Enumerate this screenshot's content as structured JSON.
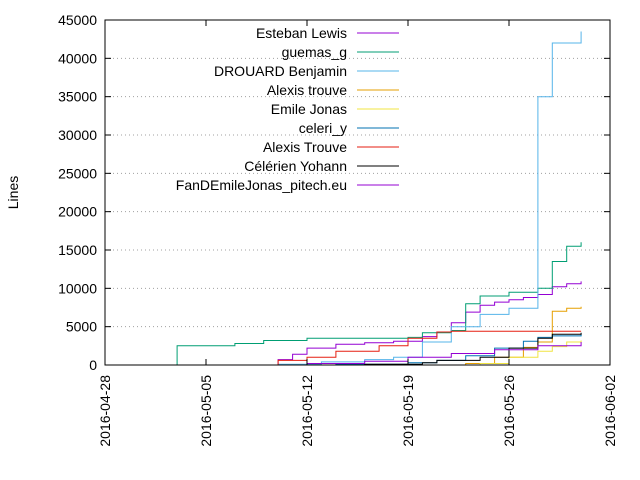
{
  "chart_data": {
    "type": "line",
    "title": "",
    "xlabel": "",
    "ylabel": "Lines",
    "x_axis_type": "date",
    "xlim": [
      "2016-04-28",
      "2016-06-02"
    ],
    "ylim": [
      0,
      45000
    ],
    "x_ticks": [
      "2016-04-28",
      "2016-05-05",
      "2016-05-12",
      "2016-05-19",
      "2016-05-26",
      "2016-06-02"
    ],
    "y_ticks": [
      0,
      5000,
      10000,
      15000,
      20000,
      25000,
      30000,
      35000,
      40000,
      45000
    ],
    "grid": "horizontal dotted",
    "legend_position": "top-right",
    "series": [
      {
        "name": "Esteban Lewis",
        "color": "#9400d3",
        "points": [
          [
            "2016-05-10",
            0
          ],
          [
            "2016-05-10",
            700
          ],
          [
            "2016-05-11",
            1400
          ],
          [
            "2016-05-12",
            2200
          ],
          [
            "2016-05-14",
            2700
          ],
          [
            "2016-05-16",
            2900
          ],
          [
            "2016-05-18",
            3100
          ],
          [
            "2016-05-20",
            3700
          ],
          [
            "2016-05-21",
            4300
          ],
          [
            "2016-05-22",
            5500
          ],
          [
            "2016-05-23",
            6900
          ],
          [
            "2016-05-24",
            7800
          ],
          [
            "2016-05-25",
            8200
          ],
          [
            "2016-05-26",
            8500
          ],
          [
            "2016-05-27",
            8800
          ],
          [
            "2016-05-28",
            9200
          ],
          [
            "2016-05-29",
            10200
          ],
          [
            "2016-05-30",
            10600
          ],
          [
            "2016-05-31",
            10900
          ]
        ]
      },
      {
        "name": "guemas_g",
        "color": "#009e73",
        "points": [
          [
            "2016-05-03",
            0
          ],
          [
            "2016-05-03",
            2500
          ],
          [
            "2016-05-07",
            2800
          ],
          [
            "2016-05-09",
            3200
          ],
          [
            "2016-05-12",
            3500
          ],
          [
            "2016-05-19",
            3600
          ],
          [
            "2016-05-20",
            4200
          ],
          [
            "2016-05-22",
            4500
          ],
          [
            "2016-05-23",
            8000
          ],
          [
            "2016-05-24",
            9000
          ],
          [
            "2016-05-26",
            9500
          ],
          [
            "2016-05-28",
            10000
          ],
          [
            "2016-05-29",
            12000
          ],
          [
            "2016-05-29",
            13500
          ],
          [
            "2016-05-30",
            15500
          ],
          [
            "2016-05-31",
            16000
          ]
        ]
      },
      {
        "name": "DROUARD Benjamin",
        "color": "#56b4e9",
        "points": [
          [
            "2016-05-03",
            0
          ],
          [
            "2016-05-10",
            100
          ],
          [
            "2016-05-13",
            400
          ],
          [
            "2016-05-16",
            700
          ],
          [
            "2016-05-18",
            1000
          ],
          [
            "2016-05-20",
            3000
          ],
          [
            "2016-05-22",
            5000
          ],
          [
            "2016-05-24",
            6600
          ],
          [
            "2016-05-26",
            7400
          ],
          [
            "2016-05-28",
            8400
          ],
          [
            "2016-05-28",
            35000
          ],
          [
            "2016-05-29",
            41000
          ],
          [
            "2016-05-29",
            42000
          ],
          [
            "2016-05-30",
            42000
          ],
          [
            "2016-05-31",
            43500
          ]
        ]
      },
      {
        "name": "Alexis trouve",
        "color": "#e69f00",
        "points": [
          [
            "2016-05-17",
            0
          ],
          [
            "2016-05-23",
            200
          ],
          [
            "2016-05-25",
            1000
          ],
          [
            "2016-05-27",
            2300
          ],
          [
            "2016-05-28",
            3000
          ],
          [
            "2016-05-29",
            5000
          ],
          [
            "2016-05-29",
            7000
          ],
          [
            "2016-05-30",
            7400
          ],
          [
            "2016-05-31",
            7600
          ]
        ]
      },
      {
        "name": "Emile Jonas",
        "color": "#f0e442",
        "points": [
          [
            "2016-05-18",
            0
          ],
          [
            "2016-05-24",
            200
          ],
          [
            "2016-05-26",
            1000
          ],
          [
            "2016-05-28",
            1800
          ],
          [
            "2016-05-29",
            2400
          ],
          [
            "2016-05-30",
            3000
          ],
          [
            "2016-05-31",
            3200
          ]
        ]
      },
      {
        "name": "celeri_y",
        "color": "#0072b2",
        "points": [
          [
            "2016-05-10",
            0
          ],
          [
            "2016-05-14",
            100
          ],
          [
            "2016-05-19",
            300
          ],
          [
            "2016-05-21",
            600
          ],
          [
            "2016-05-23",
            1200
          ],
          [
            "2016-05-25",
            2200
          ],
          [
            "2016-05-27",
            3100
          ],
          [
            "2016-05-28",
            3600
          ],
          [
            "2016-05-29",
            3800
          ],
          [
            "2016-05-31",
            4000
          ]
        ]
      },
      {
        "name": "Alexis Trouve",
        "color": "#e51e10",
        "points": [
          [
            "2016-05-10",
            0
          ],
          [
            "2016-05-10",
            600
          ],
          [
            "2016-05-12",
            1000
          ],
          [
            "2016-05-14",
            1800
          ],
          [
            "2016-05-17",
            2500
          ],
          [
            "2016-05-19",
            3500
          ],
          [
            "2016-05-21",
            4300
          ],
          [
            "2016-05-22",
            4400
          ],
          [
            "2016-05-31",
            4400
          ]
        ]
      },
      {
        "name": "Célérien Yohann",
        "color": "#000000",
        "points": [
          [
            "2016-05-10",
            0
          ],
          [
            "2016-05-16",
            100
          ],
          [
            "2016-05-20",
            300
          ],
          [
            "2016-05-21",
            600
          ],
          [
            "2016-05-24",
            1000
          ],
          [
            "2016-05-26",
            2200
          ],
          [
            "2016-05-28",
            3500
          ],
          [
            "2016-05-29",
            4000
          ],
          [
            "2016-05-31",
            4200
          ]
        ]
      },
      {
        "name": "FanDEmileJonas_pitech.eu",
        "color": "#9400d3",
        "points": [
          [
            "2016-05-10",
            0
          ],
          [
            "2016-05-12",
            200
          ],
          [
            "2016-05-16",
            500
          ],
          [
            "2016-05-19",
            1000
          ],
          [
            "2016-05-22",
            1500
          ],
          [
            "2016-05-25",
            2000
          ],
          [
            "2016-05-28",
            2500
          ],
          [
            "2016-05-31",
            3000
          ]
        ]
      }
    ]
  }
}
